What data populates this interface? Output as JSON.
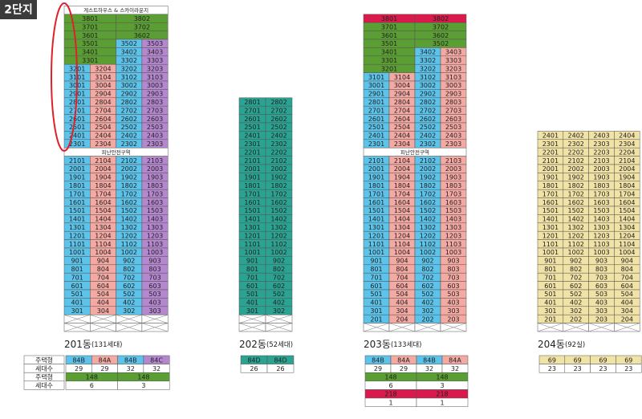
{
  "badge": "2단지",
  "colors": {
    "blue": "#5cc3ea",
    "pink": "#f4a9a3",
    "purple": "#b487cf",
    "green": "#5b9e33",
    "teal": "#2aa392",
    "red": "#d81a4c",
    "tan": "#f1e2a6"
  },
  "table_labels": [
    "주택형",
    "세대수",
    "주택형",
    "세대수"
  ],
  "buildings": [
    {
      "caption": "201동",
      "caption_sub": "(131세대)",
      "column_colors": [
        "#5cc3ea",
        "#f4a9a3",
        "#5cc3ea",
        "#b487cf"
      ],
      "rows": [
        {
          "banner": "게스트하우스 & 스카이라운지"
        },
        [
          {
            "text": "3801",
            "span": 2,
            "color": "#5b9e33"
          },
          {
            "text": "3802",
            "span": 2,
            "color": "#5b9e33"
          }
        ],
        [
          {
            "text": "3701",
            "span": 2,
            "color": "#5b9e33"
          },
          {
            "text": "3702",
            "span": 2,
            "color": "#5b9e33"
          }
        ],
        [
          {
            "text": "3601",
            "span": 2,
            "color": "#5b9e33"
          },
          {
            "text": "3602",
            "span": 2,
            "color": "#5b9e33"
          }
        ],
        [
          {
            "text": "3501",
            "span": 2,
            "color": "#5b9e33"
          },
          "3502",
          "3503"
        ],
        [
          {
            "text": "3401",
            "span": 2,
            "color": "#5b9e33"
          },
          "3402",
          "3403"
        ],
        [
          {
            "text": "3301",
            "span": 2,
            "color": "#5b9e33"
          },
          "3302",
          "3303"
        ],
        [
          "3201",
          "3204",
          "3202",
          "3203"
        ],
        [
          "3101",
          "3104",
          "3102",
          "3103"
        ],
        [
          "3001",
          "3004",
          "3002",
          "3003"
        ],
        [
          "2901",
          "2904",
          "2902",
          "2903"
        ],
        [
          "2801",
          "2804",
          "2802",
          "2803"
        ],
        [
          "2701",
          "2704",
          "2702",
          "2703"
        ],
        [
          "2601",
          "2604",
          "2602",
          "2603"
        ],
        [
          "2501",
          "2504",
          "2502",
          "2503"
        ],
        [
          "2401",
          "2404",
          "2402",
          "2403"
        ],
        [
          "2301",
          "2304",
          "2302",
          "2303"
        ],
        {
          "banner": "피난안전구역"
        },
        [
          "2101",
          "2104",
          "2102",
          "2103"
        ],
        [
          "2001",
          "2004",
          "2002",
          "2003"
        ],
        [
          "1901",
          "1904",
          "1902",
          "1903"
        ],
        [
          "1801",
          "1804",
          "1802",
          "1803"
        ],
        [
          "1701",
          "1704",
          "1702",
          "1703"
        ],
        [
          "1601",
          "1604",
          "1602",
          "1603"
        ],
        [
          "1501",
          "1504",
          "1502",
          "1503"
        ],
        [
          "1401",
          "1404",
          "1402",
          "1403"
        ],
        [
          "1301",
          "1304",
          "1302",
          "1303"
        ],
        [
          "1201",
          "1204",
          "1202",
          "1203"
        ],
        [
          "1101",
          "1104",
          "1102",
          "1103"
        ],
        [
          "1001",
          "1004",
          "1002",
          "1003"
        ],
        [
          "901",
          "904",
          "902",
          "903"
        ],
        [
          "801",
          "804",
          "802",
          "803"
        ],
        [
          "701",
          "704",
          "702",
          "703"
        ],
        [
          "601",
          "604",
          "602",
          "603"
        ],
        [
          "501",
          "504",
          "502",
          "503"
        ],
        [
          "401",
          "404",
          "402",
          "403"
        ],
        [
          "301",
          "304",
          "302",
          "303"
        ],
        null,
        null
      ],
      "table": [
        [
          {
            "text": "84B",
            "color": "#5cc3ea"
          },
          {
            "text": "84A",
            "color": "#f4a9a3"
          },
          {
            "text": "84B",
            "color": "#5cc3ea"
          },
          {
            "text": "84C",
            "color": "#b487cf"
          }
        ],
        [
          "29",
          "29",
          "32",
          "32"
        ],
        [
          {
            "text": "148",
            "span": 2,
            "color": "#5b9e33"
          },
          {
            "text": "148",
            "span": 2,
            "color": "#5b9e33"
          }
        ],
        [
          {
            "text": "6",
            "span": 2
          },
          {
            "text": "3",
            "span": 2
          }
        ]
      ]
    },
    {
      "caption": "202동",
      "caption_sub": "(52세대)",
      "column_colors": [
        "#2aa392",
        "#2aa392"
      ],
      "rows": [
        [
          "2801",
          "2802"
        ],
        [
          "2701",
          "2702"
        ],
        [
          "2601",
          "2602"
        ],
        [
          "2501",
          "2502"
        ],
        [
          "2401",
          "2402"
        ],
        [
          "2301",
          "2302"
        ],
        [
          "2201",
          "2202"
        ],
        [
          "2101",
          "2102"
        ],
        [
          "2001",
          "2002"
        ],
        [
          "1901",
          "1902"
        ],
        [
          "1801",
          "1802"
        ],
        [
          "1701",
          "1702"
        ],
        [
          "1601",
          "1602"
        ],
        [
          "1501",
          "1502"
        ],
        [
          "1401",
          "1402"
        ],
        [
          "1301",
          "1302"
        ],
        [
          "1201",
          "1202"
        ],
        [
          "1101",
          "1102"
        ],
        [
          "1001",
          "1002"
        ],
        [
          "901",
          "902"
        ],
        [
          "801",
          "802"
        ],
        [
          "701",
          "702"
        ],
        [
          "601",
          "602"
        ],
        [
          "501",
          "502"
        ],
        [
          "401",
          "402"
        ],
        [
          "301",
          "302"
        ],
        null,
        null
      ],
      "table": [
        [
          {
            "text": "84D",
            "color": "#2aa392"
          },
          {
            "text": "84D",
            "color": "#2aa392"
          }
        ],
        [
          "26",
          "26"
        ]
      ]
    },
    {
      "caption": "203동",
      "caption_sub": "(133세대)",
      "column_colors": [
        "#5cc3ea",
        "#f4a9a3",
        "#5cc3ea",
        "#f4a9a3"
      ],
      "rows": [
        [
          {
            "text": "3801",
            "span": 2,
            "color": "#d81a4c"
          },
          {
            "text": "3802",
            "span": 2,
            "color": "#d81a4c"
          }
        ],
        [
          {
            "text": "3701",
            "span": 2,
            "color": "#5b9e33"
          },
          {
            "text": "3702",
            "span": 2,
            "color": "#5b9e33"
          }
        ],
        [
          {
            "text": "3601",
            "span": 2,
            "color": "#5b9e33"
          },
          {
            "text": "3602",
            "span": 2,
            "color": "#5b9e33"
          }
        ],
        [
          {
            "text": "3501",
            "span": 2,
            "color": "#5b9e33"
          },
          {
            "text": "3502",
            "span": 2,
            "color": "#5b9e33"
          }
        ],
        [
          {
            "text": "3401",
            "span": 2,
            "color": "#5b9e33"
          },
          "3402",
          "3403"
        ],
        [
          {
            "text": "3301",
            "span": 2,
            "color": "#5b9e33"
          },
          "3302",
          "3303"
        ],
        [
          {
            "text": "3201",
            "span": 2,
            "color": "#5b9e33"
          },
          "3202",
          "3203"
        ],
        [
          "3101",
          "3104",
          "3102",
          "3103"
        ],
        [
          "3001",
          "3004",
          "3002",
          "3003"
        ],
        [
          "2901",
          "2904",
          "2902",
          "2903"
        ],
        [
          "2801",
          "2804",
          "2802",
          "2803"
        ],
        [
          "2701",
          "2704",
          "2702",
          "2703"
        ],
        [
          "2601",
          "2604",
          "2602",
          "2603"
        ],
        [
          "2501",
          "2504",
          "2502",
          "2503"
        ],
        [
          "2401",
          "2404",
          "2402",
          "2403"
        ],
        [
          "2301",
          "2304",
          "2302",
          "2303"
        ],
        {
          "banner": "피난안전구역"
        },
        [
          "2101",
          "2104",
          "2102",
          "2103"
        ],
        [
          "2001",
          "2004",
          "2002",
          "2003"
        ],
        [
          "1901",
          "1904",
          "1902",
          "1903"
        ],
        [
          "1801",
          "1804",
          "1802",
          "1803"
        ],
        [
          "1701",
          "1704",
          "1702",
          "1703"
        ],
        [
          "1601",
          "1604",
          "1602",
          "1603"
        ],
        [
          "1501",
          "1504",
          "1502",
          "1503"
        ],
        [
          "1401",
          "1404",
          "1402",
          "1403"
        ],
        [
          "1301",
          "1304",
          "1302",
          "1303"
        ],
        [
          "1201",
          "1204",
          "1202",
          "1203"
        ],
        [
          "1101",
          "1104",
          "1102",
          "1103"
        ],
        [
          "1001",
          "1004",
          "1002",
          "1003"
        ],
        [
          "901",
          "904",
          "902",
          "903"
        ],
        [
          "801",
          "804",
          "802",
          "803"
        ],
        [
          "701",
          "704",
          "702",
          "703"
        ],
        [
          "601",
          "604",
          "602",
          "603"
        ],
        [
          "501",
          "504",
          "502",
          "503"
        ],
        [
          "401",
          "404",
          "402",
          "403"
        ],
        [
          "301",
          "304",
          "302",
          "303"
        ],
        [
          "201",
          "204",
          "202",
          "203"
        ],
        null
      ],
      "table": [
        [
          {
            "text": "84B",
            "color": "#5cc3ea"
          },
          {
            "text": "84A",
            "color": "#f4a9a3"
          },
          {
            "text": "84B",
            "color": "#5cc3ea"
          },
          {
            "text": "84A",
            "color": "#f4a9a3"
          }
        ],
        [
          "29",
          "29",
          "32",
          "32"
        ],
        [
          {
            "text": "148",
            "span": 2,
            "color": "#5b9e33"
          },
          {
            "text": "148",
            "span": 2,
            "color": "#5b9e33"
          }
        ],
        [
          {
            "text": "6",
            "span": 2
          },
          {
            "text": "3",
            "span": 2
          }
        ],
        [
          {
            "text": "218",
            "span": 2,
            "color": "#d81a4c"
          },
          {
            "text": "218",
            "span": 2,
            "color": "#d81a4c"
          }
        ],
        [
          {
            "text": "1",
            "span": 2
          },
          {
            "text": "1",
            "span": 2
          }
        ]
      ]
    },
    {
      "caption": "204동",
      "caption_sub": "(92실)",
      "column_colors": [
        "#f1e2a6",
        "#f1e2a6",
        "#f1e2a6",
        "#f1e2a6"
      ],
      "rows": [
        [
          "2401",
          "2402",
          "2403",
          "2404"
        ],
        [
          "2301",
          "2302",
          "2303",
          "2304"
        ],
        [
          "2201",
          "2202",
          "2203",
          "2204"
        ],
        [
          "2101",
          "2102",
          "2103",
          "2104"
        ],
        [
          "2001",
          "2002",
          "2003",
          "2004"
        ],
        [
          "1901",
          "1902",
          "1903",
          "1904"
        ],
        [
          "1801",
          "1802",
          "1803",
          "1804"
        ],
        [
          "1701",
          "1702",
          "1703",
          "1704"
        ],
        [
          "1601",
          "1602",
          "1603",
          "1604"
        ],
        [
          "1501",
          "1502",
          "1503",
          "1504"
        ],
        [
          "1401",
          "1402",
          "1403",
          "1404"
        ],
        [
          "1301",
          "1302",
          "1303",
          "1304"
        ],
        [
          "1201",
          "1202",
          "1203",
          "1204"
        ],
        [
          "1101",
          "1102",
          "1103",
          "1104"
        ],
        [
          "1001",
          "1002",
          "1003",
          "1004"
        ],
        [
          "901",
          "902",
          "903",
          "904"
        ],
        [
          "801",
          "802",
          "803",
          "804"
        ],
        [
          "701",
          "702",
          "703",
          "704"
        ],
        [
          "601",
          "602",
          "603",
          "604"
        ],
        [
          "501",
          "502",
          "503",
          "504"
        ],
        [
          "401",
          "402",
          "403",
          "404"
        ],
        [
          "301",
          "302",
          "303",
          "304"
        ],
        [
          "201",
          "202",
          "203",
          "204"
        ],
        null
      ],
      "table": [
        [
          {
            "text": "69",
            "color": "#f1e2a6"
          },
          {
            "text": "69",
            "color": "#f1e2a6"
          },
          {
            "text": "69",
            "color": "#f1e2a6"
          },
          {
            "text": "69",
            "color": "#f1e2a6"
          }
        ],
        [
          "23",
          "23",
          "23",
          "23"
        ]
      ]
    }
  ]
}
